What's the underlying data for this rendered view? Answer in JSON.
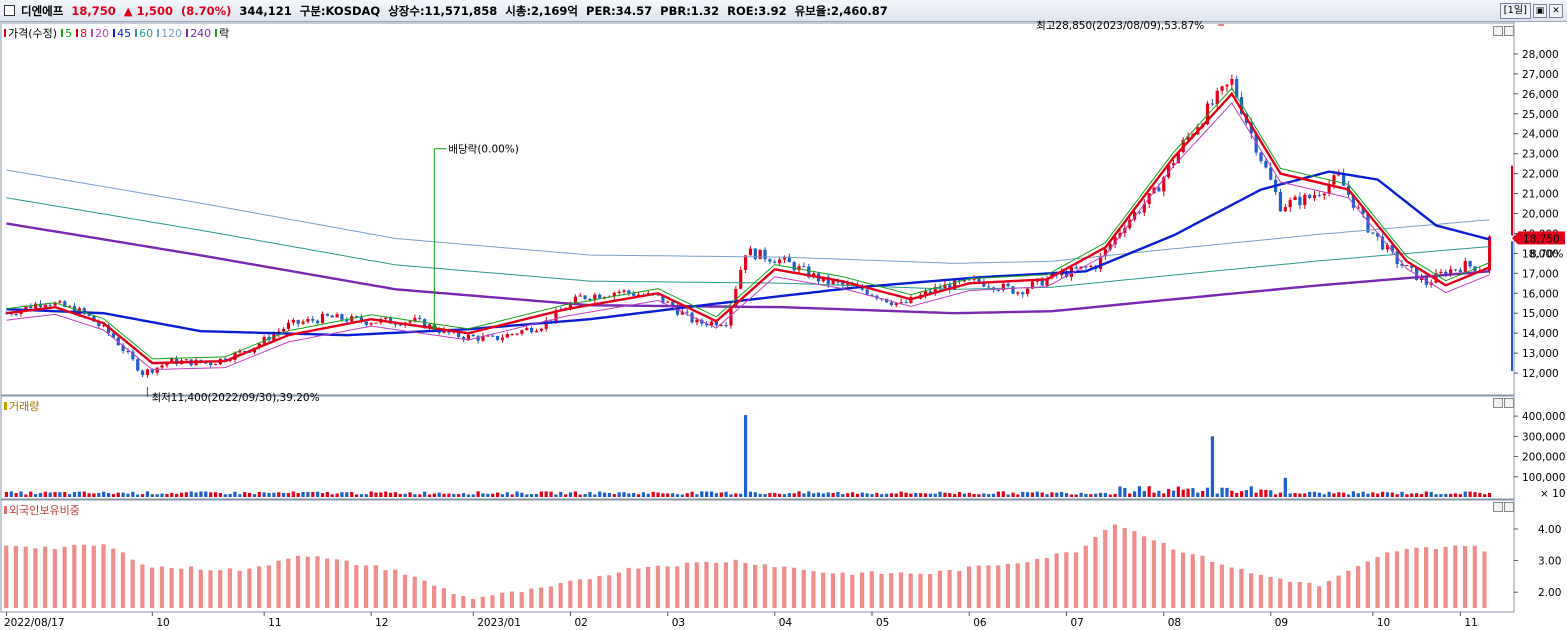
{
  "header": {
    "stock_name": "디엔에프",
    "price": "18,750",
    "change": "▲ 1,500",
    "change_pct": "(8.70%)",
    "volume": "344,121",
    "market": "구분:KOSDAQ",
    "shares": "상장수:11,571,858",
    "market_cap": "시총:2,169억",
    "per": "PER:34.57",
    "pbr": "PBR:1.32",
    "roe": "ROE:3.92",
    "float_ratio": "유보율:2,460.87",
    "period_button": "[1일]"
  },
  "legend": [
    {
      "label": "가격(수정)",
      "color": "#e0001b"
    },
    {
      "label": "5",
      "color": "#19a019"
    },
    {
      "label": "8",
      "color": "#e0001b"
    },
    {
      "label": "20",
      "color": "#c040c0"
    },
    {
      "label": "45",
      "color": "#0a1fd0"
    },
    {
      "label": "60",
      "color": "#2a9a8a"
    },
    {
      "label": "120",
      "color": "#7aa0c8"
    },
    {
      "label": "240",
      "color": "#7a2ab0"
    },
    {
      "label": "락",
      "color": "#19a019"
    }
  ],
  "annotations": {
    "high": "최고28,850(2023/08/09),53.87%",
    "low": "최저11,400(2022/09/30),39.20%",
    "dividend": "배당락(0.00%)"
  },
  "price_tag": {
    "price": "18,750",
    "pct": "8.70%"
  },
  "volume_pane": {
    "label": "거래량",
    "unit": "× 10"
  },
  "foreign_pane": {
    "label": "외국인보유비중"
  },
  "colors": {
    "up": "#e0001b",
    "down": "#1f5fc8",
    "bg": "#ffffff",
    "grid": "#c8d0dc"
  },
  "chart_data": [
    {
      "type": "candlestick",
      "title": "디엔에프",
      "ylim": [
        11000,
        29000
      ],
      "y_ticks": [
        12000,
        13000,
        14000,
        15000,
        16000,
        17000,
        18000,
        19000,
        20000,
        21000,
        22000,
        23000,
        24000,
        25000,
        26000,
        27000,
        28000
      ],
      "y_tick_labels": [
        "12,000",
        "13,000",
        "14,000",
        "15,000",
        "16,000",
        "17,000",
        "18,000",
        "19,000",
        "20,000",
        "21,000",
        "22,000",
        "23,000",
        "24,000",
        "25,000",
        "26,000",
        "27,000",
        "28,000"
      ],
      "x_tick_labels": [
        "2022/08/17",
        "10",
        "11",
        "12",
        "2023/01",
        "02",
        "03",
        "04",
        "05",
        "06",
        "07",
        "08",
        "09",
        "10",
        "11"
      ],
      "close_series": [
        {
          "t": 0,
          "v": 15000
        },
        {
          "t": 8,
          "v": 15600
        },
        {
          "t": 16,
          "v": 15000
        },
        {
          "t": 22,
          "v": 13800
        },
        {
          "t": 28,
          "v": 12000
        },
        {
          "t": 34,
          "v": 12600
        },
        {
          "t": 42,
          "v": 12500
        },
        {
          "t": 50,
          "v": 13200
        },
        {
          "t": 58,
          "v": 14400
        },
        {
          "t": 66,
          "v": 14800
        },
        {
          "t": 74,
          "v": 14600
        },
        {
          "t": 84,
          "v": 14600
        },
        {
          "t": 92,
          "v": 13900
        },
        {
          "t": 100,
          "v": 13700
        },
        {
          "t": 110,
          "v": 14400
        },
        {
          "t": 118,
          "v": 15800
        },
        {
          "t": 126,
          "v": 16100
        },
        {
          "t": 134,
          "v": 15800
        },
        {
          "t": 142,
          "v": 14500
        },
        {
          "t": 148,
          "v": 14600
        },
        {
          "t": 152,
          "v": 18100
        },
        {
          "t": 160,
          "v": 17600
        },
        {
          "t": 168,
          "v": 16600
        },
        {
          "t": 176,
          "v": 16200
        },
        {
          "t": 184,
          "v": 15400
        },
        {
          "t": 192,
          "v": 16300
        },
        {
          "t": 200,
          "v": 16600
        },
        {
          "t": 208,
          "v": 16100
        },
        {
          "t": 216,
          "v": 16900
        },
        {
          "t": 224,
          "v": 17400
        },
        {
          "t": 230,
          "v": 19500
        },
        {
          "t": 236,
          "v": 21000
        },
        {
          "t": 242,
          "v": 23500
        },
        {
          "t": 248,
          "v": 25500
        },
        {
          "t": 252,
          "v": 26600
        },
        {
          "t": 256,
          "v": 24000
        },
        {
          "t": 262,
          "v": 20400
        },
        {
          "t": 268,
          "v": 20800
        },
        {
          "t": 274,
          "v": 21800
        },
        {
          "t": 280,
          "v": 19300
        },
        {
          "t": 286,
          "v": 17600
        },
        {
          "t": 292,
          "v": 16500
        },
        {
          "t": 296,
          "v": 17100
        },
        {
          "t": 300,
          "v": 17400
        },
        {
          "t": 304,
          "v": 17250
        },
        {
          "t": 305,
          "v": 18750
        }
      ],
      "ma8": [
        {
          "t": 0,
          "v": 15000
        },
        {
          "t": 10,
          "v": 15300
        },
        {
          "t": 20,
          "v": 14500
        },
        {
          "t": 30,
          "v": 12500
        },
        {
          "t": 45,
          "v": 12600
        },
        {
          "t": 58,
          "v": 13900
        },
        {
          "t": 75,
          "v": 14700
        },
        {
          "t": 95,
          "v": 14000
        },
        {
          "t": 115,
          "v": 15200
        },
        {
          "t": 134,
          "v": 16000
        },
        {
          "t": 146,
          "v": 14600
        },
        {
          "t": 158,
          "v": 17200
        },
        {
          "t": 172,
          "v": 16600
        },
        {
          "t": 186,
          "v": 15700
        },
        {
          "t": 198,
          "v": 16500
        },
        {
          "t": 214,
          "v": 16700
        },
        {
          "t": 226,
          "v": 18300
        },
        {
          "t": 240,
          "v": 22800
        },
        {
          "t": 252,
          "v": 26000
        },
        {
          "t": 262,
          "v": 22000
        },
        {
          "t": 276,
          "v": 21200
        },
        {
          "t": 288,
          "v": 17600
        },
        {
          "t": 296,
          "v": 16400
        },
        {
          "t": 305,
          "v": 17300
        }
      ],
      "ma45": [
        {
          "t": 0,
          "v": 15200
        },
        {
          "t": 20,
          "v": 15000
        },
        {
          "t": 40,
          "v": 14100
        },
        {
          "t": 70,
          "v": 13900
        },
        {
          "t": 95,
          "v": 14200
        },
        {
          "t": 120,
          "v": 14700
        },
        {
          "t": 150,
          "v": 15600
        },
        {
          "t": 175,
          "v": 16300
        },
        {
          "t": 200,
          "v": 16800
        },
        {
          "t": 222,
          "v": 17100
        },
        {
          "t": 240,
          "v": 18900
        },
        {
          "t": 258,
          "v": 21200
        },
        {
          "t": 272,
          "v": 22100
        },
        {
          "t": 282,
          "v": 21700
        },
        {
          "t": 294,
          "v": 19400
        },
        {
          "t": 305,
          "v": 18700
        }
      ],
      "ma240": [
        {
          "t": 0,
          "v": 19500
        },
        {
          "t": 40,
          "v": 17900
        },
        {
          "t": 80,
          "v": 16200
        },
        {
          "t": 120,
          "v": 15400
        },
        {
          "t": 160,
          "v": 15300
        },
        {
          "t": 195,
          "v": 15000
        },
        {
          "t": 215,
          "v": 15100
        },
        {
          "t": 240,
          "v": 15700
        },
        {
          "t": 270,
          "v": 16400
        },
        {
          "t": 305,
          "v": 17100
        }
      ]
    },
    {
      "type": "bar",
      "title": "거래량",
      "ylim": [
        0,
        450000
      ],
      "y_tick_labels": [
        "100,000",
        "200,000",
        "300,000",
        "400,000"
      ],
      "y_ticks": [
        100000,
        200000,
        300000,
        400000
      ],
      "notable_values": [
        {
          "t": 152,
          "v": 405000
        },
        {
          "t": 248,
          "v": 300000
        },
        {
          "t": 263,
          "v": 95000
        }
      ]
    },
    {
      "type": "bar",
      "title": "외국인보유비중",
      "ylim": [
        1.5,
        4.6
      ],
      "y_tick_labels": [
        "2.00",
        "3.00",
        "4.00"
      ],
      "y_ticks": [
        2,
        3,
        4
      ],
      "series_points": [
        {
          "t": 0,
          "v": 3.5
        },
        {
          "t": 10,
          "v": 3.4
        },
        {
          "t": 20,
          "v": 3.5
        },
        {
          "t": 30,
          "v": 2.8
        },
        {
          "t": 50,
          "v": 2.7
        },
        {
          "t": 60,
          "v": 3.2
        },
        {
          "t": 80,
          "v": 2.7
        },
        {
          "t": 95,
          "v": 1.8
        },
        {
          "t": 110,
          "v": 2.1
        },
        {
          "t": 130,
          "v": 2.8
        },
        {
          "t": 150,
          "v": 3.0
        },
        {
          "t": 170,
          "v": 2.6
        },
        {
          "t": 190,
          "v": 2.6
        },
        {
          "t": 210,
          "v": 3.0
        },
        {
          "t": 220,
          "v": 3.3
        },
        {
          "t": 228,
          "v": 4.2
        },
        {
          "t": 240,
          "v": 3.4
        },
        {
          "t": 256,
          "v": 2.6
        },
        {
          "t": 270,
          "v": 2.2
        },
        {
          "t": 285,
          "v": 3.3
        },
        {
          "t": 300,
          "v": 3.5
        },
        {
          "t": 305,
          "v": 3.3
        }
      ]
    }
  ]
}
